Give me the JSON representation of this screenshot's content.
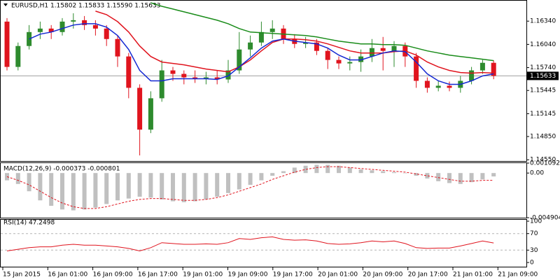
{
  "chart_data": [
    {
      "type": "candlestick",
      "title": "EURUSD,H1  1.15802 1.15833 1.15590 1.15633",
      "up_color": "#2e8b2e",
      "down_color": "#e0141e",
      "open": [
        1.16334,
        1.15749,
        1.16019,
        1.16199,
        1.16244,
        1.16199,
        1.16334,
        1.16352,
        1.16289,
        1.16244,
        1.16109,
        1.15884,
        1.15479,
        1.14939,
        1.15344,
        1.15704,
        1.15659,
        1.15614,
        1.15596,
        1.15614,
        1.15587,
        1.15704,
        1.15974,
        1.16064,
        1.16199,
        1.16244,
        1.16109,
        1.16046,
        1.16064,
        1.15956,
        1.15839,
        1.15794,
        1.15812,
        1.15884,
        1.15992,
        1.15956,
        1.16019,
        1.15884,
        1.15569,
        1.15479,
        1.15506,
        1.15479,
        1.15569,
        1.15704,
        1.15802
      ],
      "high": [
        1.16379,
        1.16064,
        1.16289,
        1.16334,
        1.16289,
        1.16379,
        1.16442,
        1.16406,
        1.16352,
        1.16289,
        1.16154,
        1.15929,
        1.15524,
        1.15434,
        1.15839,
        1.15749,
        1.15704,
        1.15704,
        1.15686,
        1.15704,
        1.15839,
        1.16199,
        1.16154,
        1.16334,
        1.16352,
        1.16289,
        1.16172,
        1.16136,
        1.16109,
        1.15992,
        1.15884,
        1.15884,
        1.15974,
        1.16109,
        1.16136,
        1.16082,
        1.16064,
        1.15929,
        1.15614,
        1.15569,
        1.1556,
        1.15632,
        1.15749,
        1.15839,
        1.15833
      ],
      "low": [
        1.15704,
        1.15704,
        1.15974,
        1.16109,
        1.16109,
        1.16154,
        1.16244,
        1.16226,
        1.16154,
        1.16019,
        1.15749,
        1.15344,
        1.14606,
        1.14894,
        1.15299,
        1.15569,
        1.15524,
        1.15542,
        1.15524,
        1.15524,
        1.15542,
        1.15659,
        1.15884,
        1.16019,
        1.16109,
        1.16046,
        1.15992,
        1.15992,
        1.15902,
        1.15722,
        1.15722,
        1.15704,
        1.15686,
        1.15812,
        1.15704,
        1.15749,
        1.15749,
        1.15479,
        1.15416,
        1.15434,
        1.15434,
        1.15416,
        1.15524,
        1.15659,
        1.1559
      ],
      "close": [
        1.15749,
        1.16019,
        1.16199,
        1.16244,
        1.16199,
        1.16334,
        1.16352,
        1.16289,
        1.16244,
        1.16109,
        1.15884,
        1.15479,
        1.14939,
        1.15344,
        1.15704,
        1.15659,
        1.15614,
        1.15596,
        1.15614,
        1.15587,
        1.15704,
        1.15974,
        1.16064,
        1.16199,
        1.16244,
        1.16109,
        1.16046,
        1.16064,
        1.15956,
        1.15839,
        1.15794,
        1.15812,
        1.15884,
        1.15992,
        1.15956,
        1.16019,
        1.15884,
        1.15569,
        1.15479,
        1.15506,
        1.15479,
        1.15569,
        1.15704,
        1.15802,
        1.15633
      ],
      "overlays": [
        {
          "color": "#1a8c1a",
          "values": [
            null,
            null,
            null,
            null,
            null,
            null,
            null,
            null,
            null,
            null,
            null,
            null,
            null,
            1.16577,
            1.16532,
            1.16496,
            1.1646,
            1.16424,
            1.16388,
            1.16352,
            1.16307,
            1.16244,
            1.16199,
            1.1619,
            1.16181,
            1.16172,
            1.16163,
            1.16154,
            1.16136,
            1.16109,
            1.16082,
            1.16064,
            1.16046,
            1.16046,
            1.16037,
            1.16037,
            1.16028,
            1.15992,
            1.15956,
            1.15929,
            1.15902,
            1.15884,
            1.15866,
            1.15848,
            1.1583
          ]
        },
        {
          "color": "#e0141e",
          "values": [
            null,
            null,
            null,
            null,
            null,
            null,
            null,
            null,
            1.16469,
            1.16424,
            1.16334,
            1.16199,
            1.16019,
            1.15884,
            1.15812,
            1.15794,
            1.15776,
            1.15749,
            1.15722,
            1.15704,
            1.15686,
            1.15749,
            1.15839,
            1.15956,
            1.16064,
            1.16109,
            1.16109,
            1.161,
            1.16082,
            1.16046,
            1.16001,
            1.15956,
            1.15929,
            1.15929,
            1.15929,
            1.15947,
            1.15956,
            1.15902,
            1.15812,
            1.15749,
            1.15704,
            1.15677,
            1.15668,
            1.15677,
            1.15668
          ]
        },
        {
          "color": "#1428d2",
          "values": [
            null,
            null,
            1.16109,
            1.16172,
            1.16199,
            1.16244,
            1.16289,
            1.16307,
            1.16307,
            1.16262,
            1.16154,
            1.15974,
            1.15704,
            1.15569,
            1.15569,
            1.15596,
            1.15596,
            1.15596,
            1.15596,
            1.15587,
            1.15632,
            1.15749,
            1.15866,
            1.15992,
            1.16082,
            1.16109,
            1.16082,
            1.16064,
            1.16046,
            1.15992,
            1.15902,
            1.15839,
            1.15839,
            1.15884,
            1.15929,
            1.15956,
            1.15947,
            1.15812,
            1.15659,
            1.15569,
            1.15524,
            1.15524,
            1.15569,
            1.15632,
            1.15659
          ]
        }
      ],
      "price_line": {
        "value": 1.15633,
        "label": "1.15633"
      },
      "ylim": [
        1.14534,
        1.16604
      ],
      "yticks": [
        {
          "value": 1.1634,
          "label": "1.16340"
        },
        {
          "value": 1.1604,
          "label": "1.16040"
        },
        {
          "value": 1.1574,
          "label": "1.15740"
        },
        {
          "value": 1.15445,
          "label": "1.15445"
        },
        {
          "value": 1.15145,
          "label": "1.15145"
        },
        {
          "value": 1.1485,
          "label": "1.14850"
        },
        {
          "value": 1.1455,
          "label": "1.14550"
        }
      ]
    },
    {
      "type": "macd",
      "title": "MACD(12,26,9) -0.000373 -0.000801",
      "color": "#c0c0c0",
      "signal_color": "#e0141e",
      "values": [
        -0.0008,
        -0.0012,
        -0.002,
        -0.003,
        -0.0036,
        -0.004,
        -0.0041,
        -0.004,
        -0.0038,
        -0.0034,
        -0.003,
        -0.0028,
        -0.0026,
        -0.0027,
        -0.0029,
        -0.0031,
        -0.0032,
        -0.0031,
        -0.0029,
        -0.0026,
        -0.0022,
        -0.0018,
        -0.0013,
        -0.0008,
        -0.0003,
        0.0002,
        0.0006,
        0.0008,
        0.0009,
        0.0009,
        0.0008,
        0.0006,
        0.0004,
        0.0003,
        0.0002,
        0.0001,
        0.0,
        -0.0003,
        -0.0006,
        -0.0009,
        -0.0011,
        -0.0012,
        -0.001,
        -0.0007,
        -0.000373
      ],
      "signal": [
        -0.0004,
        -0.0008,
        -0.0013,
        -0.002,
        -0.0027,
        -0.0033,
        -0.0037,
        -0.0039,
        -0.0039,
        -0.0037,
        -0.0034,
        -0.0031,
        -0.0029,
        -0.0028,
        -0.0028,
        -0.0029,
        -0.003,
        -0.003,
        -0.0029,
        -0.0027,
        -0.0024,
        -0.002,
        -0.0016,
        -0.0012,
        -0.0007,
        -0.0003,
        0.0001,
        0.0004,
        0.0006,
        0.0007,
        0.0007,
        0.0006,
        0.0005,
        0.0004,
        0.0003,
        0.0002,
        0.0001,
        -0.0001,
        -0.0003,
        -0.0005,
        -0.0007,
        -0.0009,
        -0.0009,
        -0.0008,
        -0.000801
      ],
      "ylim": [
        -0.004904,
        0.001092
      ],
      "yticks": [
        0.001092,
        {
          "value": 0,
          "label": "0.00"
        },
        -0.004904
      ]
    },
    {
      "type": "rsi",
      "title": "RSI(14) 47.2498",
      "color": "#e0141e",
      "values": [
        28,
        32,
        36,
        38,
        38,
        42,
        44,
        42,
        42,
        40,
        38,
        34,
        28,
        36,
        48,
        46,
        44,
        44,
        45,
        44,
        48,
        58,
        56,
        60,
        62,
        56,
        54,
        55,
        52,
        46,
        44,
        45,
        48,
        52,
        50,
        52,
        46,
        36,
        34,
        35,
        35,
        40,
        46,
        52,
        47.2498
      ],
      "ylim": [
        0,
        100
      ],
      "yticks": [
        100,
        70,
        30,
        0
      ],
      "time_labels": [
        "15 Jan 2015",
        "16 Jan 01:00",
        "16 Jan 09:00",
        "16 Jan 17:00",
        "19 Jan 01:00",
        "19 Jan 09:00",
        "19 Jan 17:00",
        "20 Jan 01:00",
        "20 Jan 09:00",
        "20 Jan 17:00",
        "21 Jan 01:00",
        "21 Jan 09:00"
      ]
    }
  ]
}
